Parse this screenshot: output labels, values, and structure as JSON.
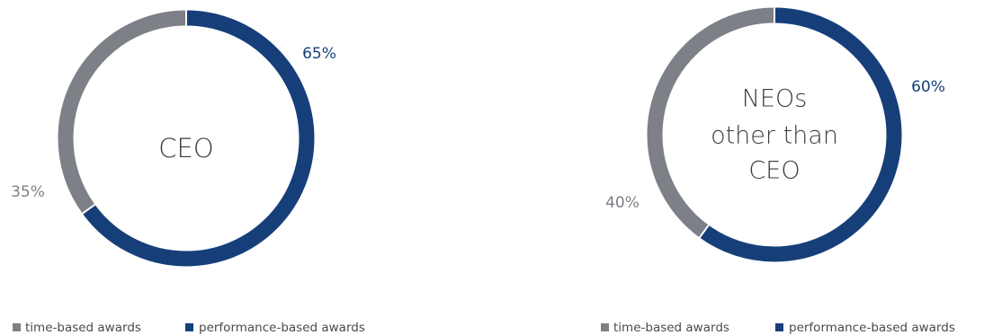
{
  "chart_data": [
    {
      "type": "pie",
      "style": "donut",
      "center_label": [
        "CEO"
      ],
      "categories": [
        "time-based awards",
        "performance-based awards"
      ],
      "values": [
        35,
        65
      ],
      "value_labels": [
        "35%",
        "65%"
      ],
      "colors": [
        "#7d8086",
        "#163f7a"
      ],
      "legend_position": "bottom-left"
    },
    {
      "type": "pie",
      "style": "donut",
      "center_label": [
        "NEOs",
        "other than",
        "CEO"
      ],
      "categories": [
        "time-based awards",
        "performance-based awards"
      ],
      "values": [
        40,
        60
      ],
      "value_labels": [
        "40%",
        "60%"
      ],
      "colors": [
        "#7d8086",
        "#163f7a"
      ],
      "legend_position": "bottom-right"
    }
  ],
  "colors": {
    "performance": "#163f7a",
    "time": "#7d8086",
    "center_text": "#3b3b3b",
    "legend_text": "#4a4a4a"
  }
}
